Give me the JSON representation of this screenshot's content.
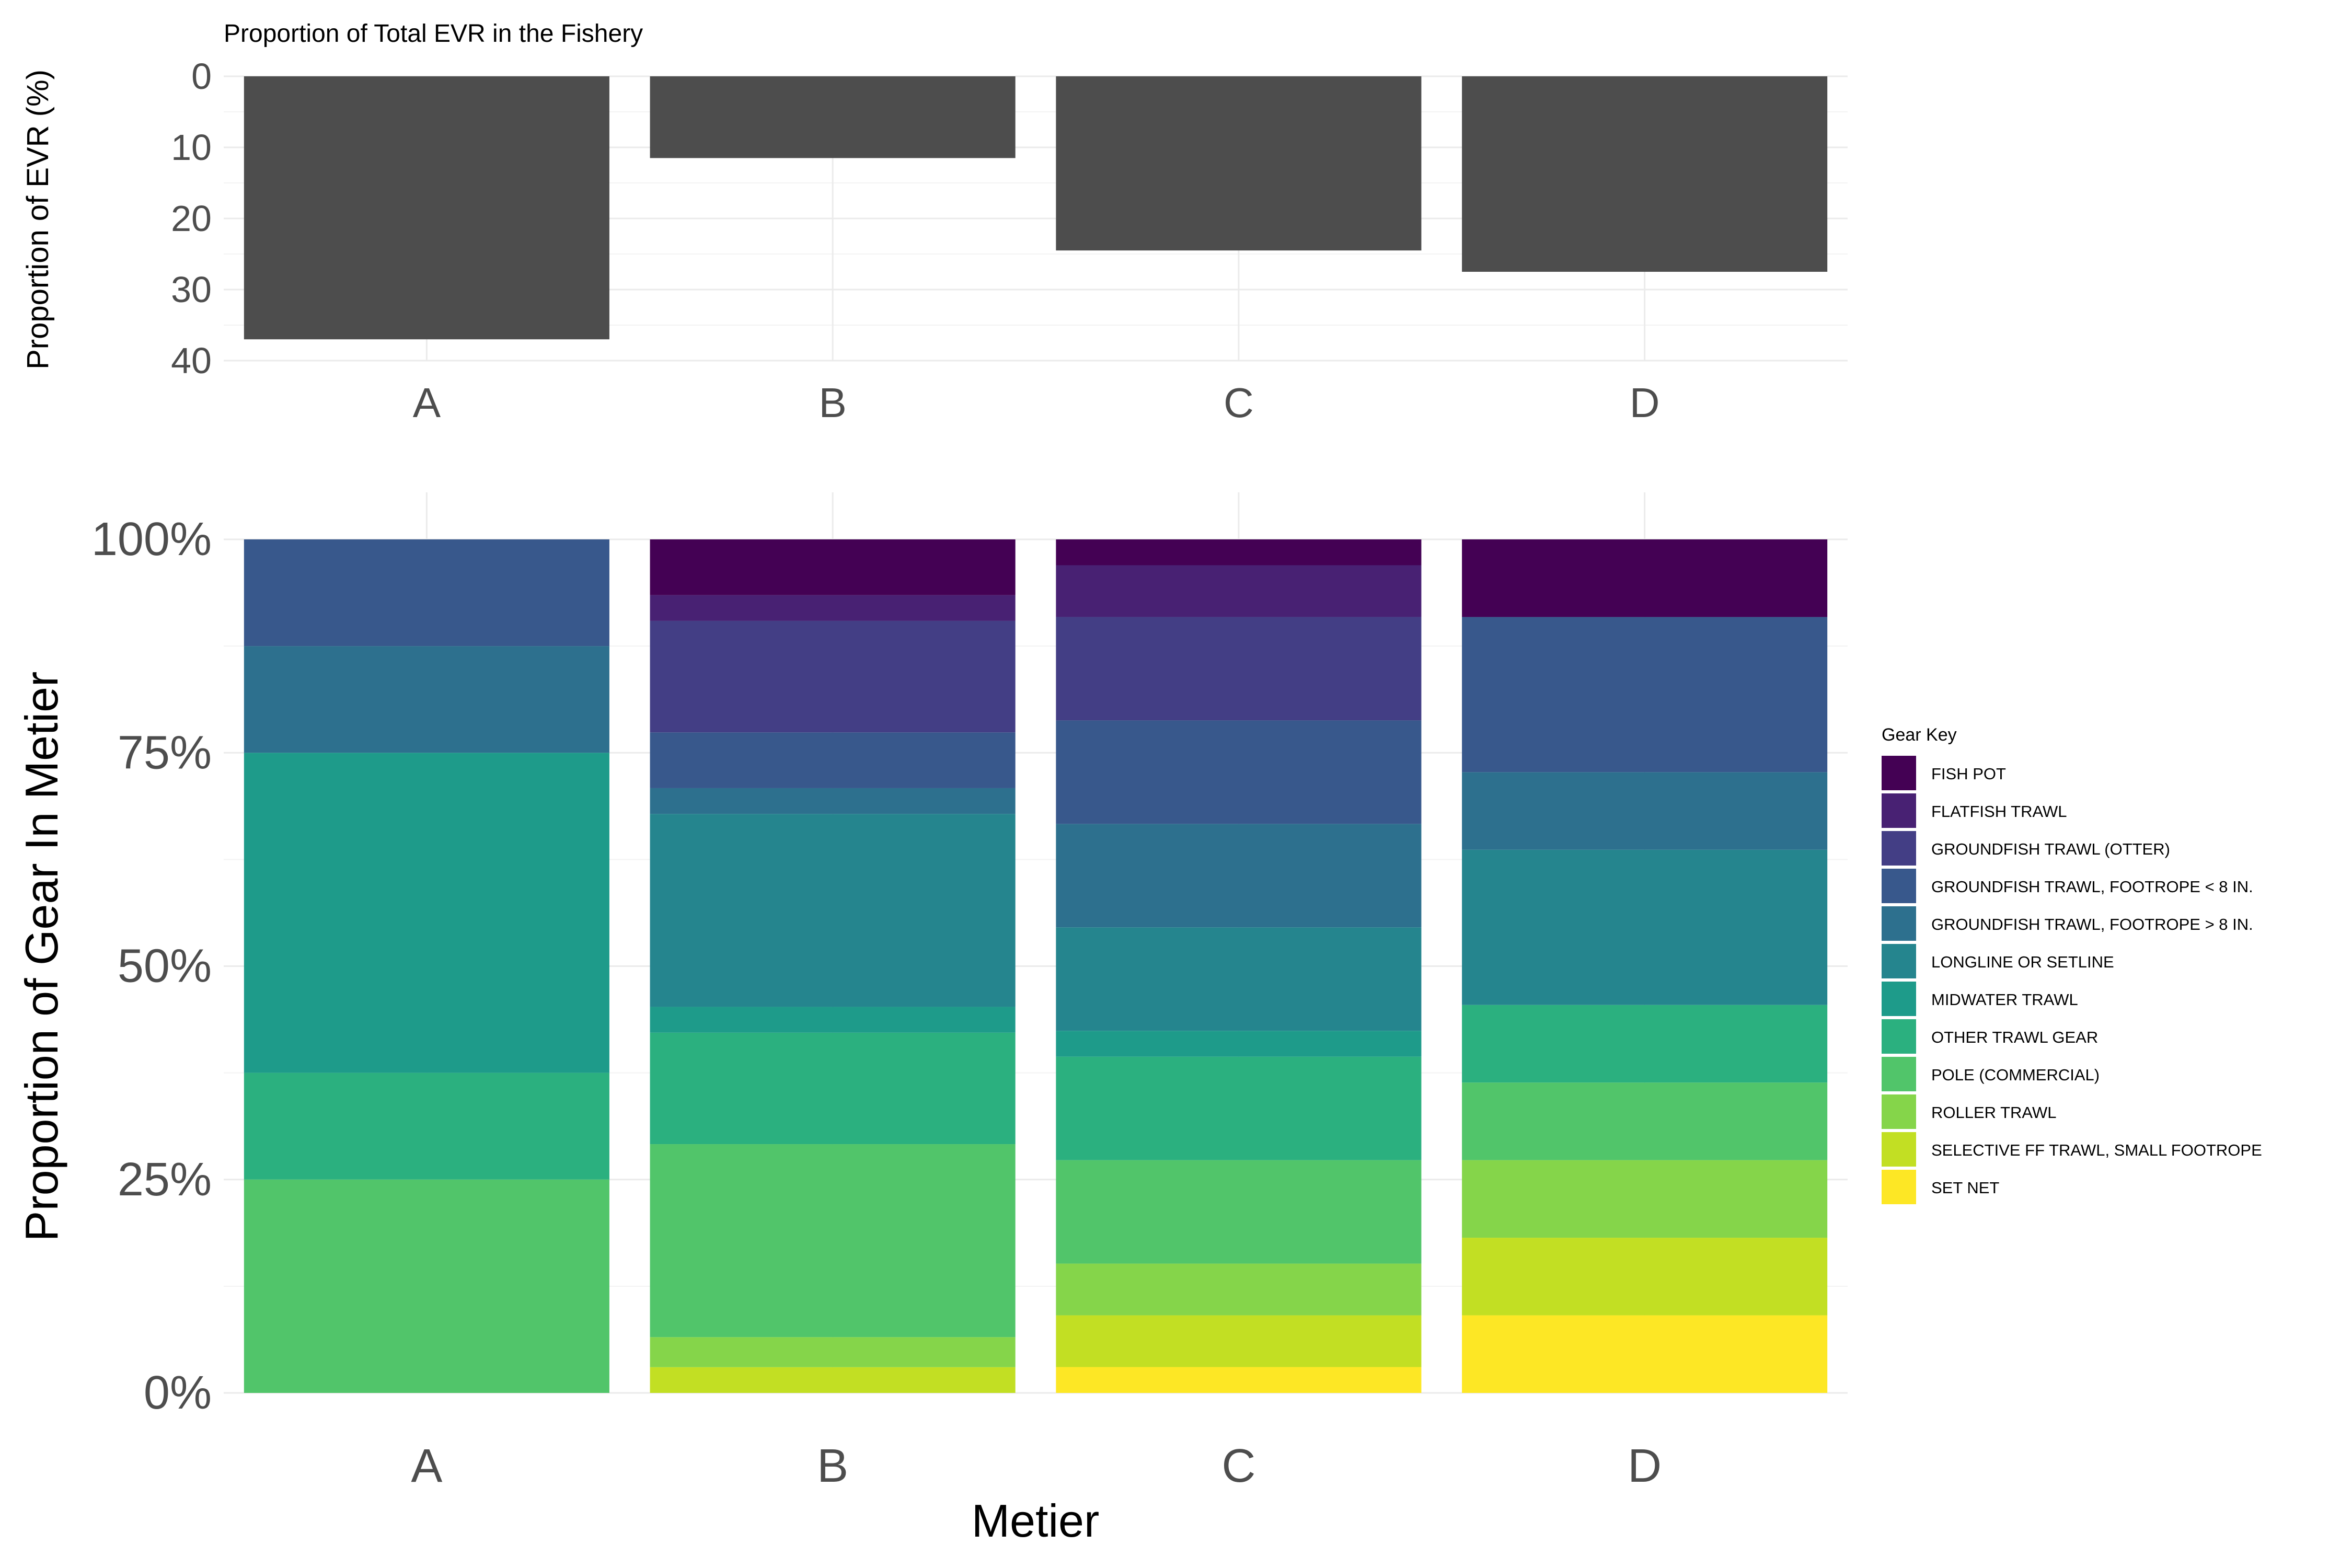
{
  "chart_data": [
    {
      "type": "bar",
      "title": "Proportion of Total EVR in the Fishery",
      "ylabel": "Proportion of EVR (%)",
      "xlabel": "",
      "categories": [
        "A",
        "B",
        "C",
        "D"
      ],
      "values": [
        37,
        11.5,
        24.5,
        27.5
      ],
      "ylim": [
        0,
        40
      ],
      "y_reversed": true,
      "yticks": [
        "0",
        "10",
        "20",
        "30",
        "40"
      ],
      "bar_color": "#4d4d4d",
      "grid": true
    },
    {
      "type": "bar",
      "stacked": true,
      "xlabel": "Metier",
      "ylabel": "Proportion of Gear In Metier",
      "categories": [
        "A",
        "B",
        "C",
        "D"
      ],
      "yticks": [
        "0%",
        "25%",
        "50%",
        "75%",
        "100%"
      ],
      "ylim": [
        0,
        1
      ],
      "grid": true,
      "legend": {
        "title": "Gear Key",
        "position": "right"
      },
      "series": [
        {
          "name": "FISH POT",
          "color": "#440154",
          "values": [
            0,
            0.065,
            0.03,
            0.09
          ]
        },
        {
          "name": "FLATFISH TRAWL",
          "color": "#482173",
          "values": [
            0,
            0.03,
            0.06,
            0
          ]
        },
        {
          "name": "GROUNDFISH TRAWL (OTTER)",
          "color": "#433E85",
          "values": [
            0,
            0.13,
            0.12,
            0
          ]
        },
        {
          "name": "GROUNDFISH TRAWL, FOOTROPE < 8 IN.",
          "color": "#38588C",
          "values": [
            0.125,
            0.065,
            0.12,
            0.18
          ]
        },
        {
          "name": "GROUNDFISH TRAWL, FOOTROPE > 8 IN.",
          "color": "#2D708E",
          "values": [
            0.125,
            0.03,
            0.12,
            0.09
          ]
        },
        {
          "name": "LONGLINE OR SETLINE",
          "color": "#25858E",
          "values": [
            0,
            0.225,
            0.12,
            0.18
          ]
        },
        {
          "name": "MIDWATER TRAWL",
          "color": "#1E9B8A",
          "values": [
            0.375,
            0.03,
            0.03,
            0
          ]
        },
        {
          "name": "OTHER TRAWL GEAR",
          "color": "#2BB07F",
          "values": [
            0.125,
            0.13,
            0.12,
            0.09
          ]
        },
        {
          "name": "POLE (COMMERCIAL)",
          "color": "#51C56A",
          "values": [
            0.25,
            0.225,
            0.12,
            0.09
          ]
        },
        {
          "name": "ROLLER TRAWL",
          "color": "#85D54A",
          "values": [
            0,
            0.035,
            0.06,
            0.09
          ]
        },
        {
          "name": "SELECTIVE FF TRAWL, SMALL FOOTROPE",
          "color": "#C2DF23",
          "values": [
            0,
            0.03,
            0.06,
            0.09
          ]
        },
        {
          "name": "SET NET",
          "color": "#FDE725",
          "values": [
            0,
            0,
            0.03,
            0.09
          ]
        }
      ]
    }
  ]
}
